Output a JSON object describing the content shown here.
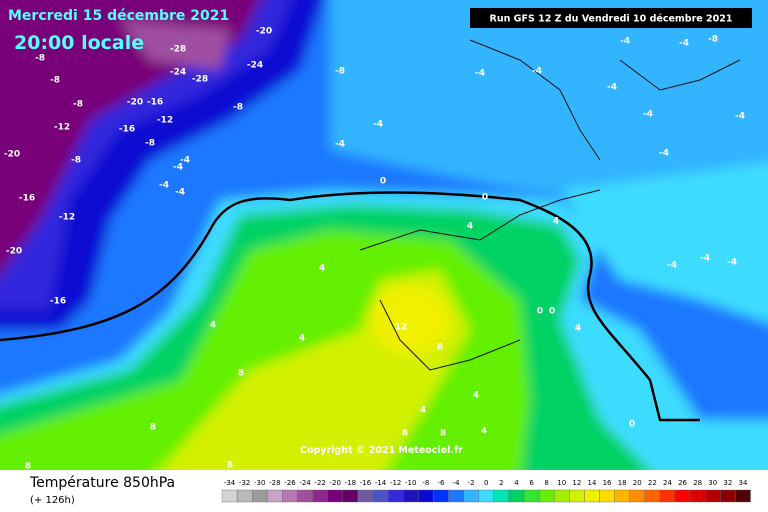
{
  "header": {
    "date": "Mercredi 15 décembre 2021",
    "time": "20:00 locale",
    "run": "Run GFS 12 Z du Vendredi 10 décembre 2021"
  },
  "copyright": "Copyright © 2021 Meteociel.fr",
  "legend": {
    "title": "Température 850hPa",
    "lead": "(+ 126h)",
    "scale": [
      -34,
      -32,
      -30,
      -28,
      -26,
      -24,
      -22,
      -20,
      -18,
      -16,
      -14,
      -12,
      -10,
      -8,
      -6,
      -4,
      -2,
      0,
      2,
      4,
      6,
      8,
      10,
      12,
      14,
      16,
      18,
      20,
      22,
      24,
      26,
      28,
      30,
      32,
      34
    ],
    "colors": [
      "#d4d4d4",
      "#b8b8b8",
      "#9c9c9c",
      "#c8a0c8",
      "#b478b4",
      "#a050a0",
      "#8c288c",
      "#780078",
      "#640064",
      "#6e5aa0",
      "#5050c8",
      "#3228dc",
      "#1e14be",
      "#0a0ad2",
      "#0032ff",
      "#1e78ff",
      "#32b4ff",
      "#3cdcff",
      "#00e6b4",
      "#00d264",
      "#32e632",
      "#64f000",
      "#a0f000",
      "#d2f000",
      "#f0f000",
      "#ffdc00",
      "#ffb400",
      "#ff8c00",
      "#ff6400",
      "#ff3200",
      "#ff0000",
      "#dc0000",
      "#b40000",
      "#8c0000",
      "#500000"
    ]
  },
  "contour_labels": [
    "-20",
    "-28",
    "-24",
    "-28",
    "-24",
    "-8",
    "-8",
    "-8",
    "-8",
    "-8",
    "-20",
    "-16",
    "-12",
    "-16",
    "-12",
    "-8",
    "-8",
    "-20",
    "-16",
    "-12",
    "-20",
    "-16",
    "-4",
    "-4",
    "-4",
    "-4",
    "-4",
    "-4",
    "0",
    "0",
    "-4",
    "-4",
    "-4",
    "-4",
    "-8",
    "-4",
    "4",
    "4",
    "4",
    "4",
    "4",
    "12",
    "8",
    "8",
    "8",
    "8",
    "8",
    "4",
    "4",
    "4",
    "0",
    "4",
    "0",
    "0",
    "-4",
    "-4",
    "-4",
    "-4",
    "-4",
    "-4",
    "8",
    "8"
  ]
}
